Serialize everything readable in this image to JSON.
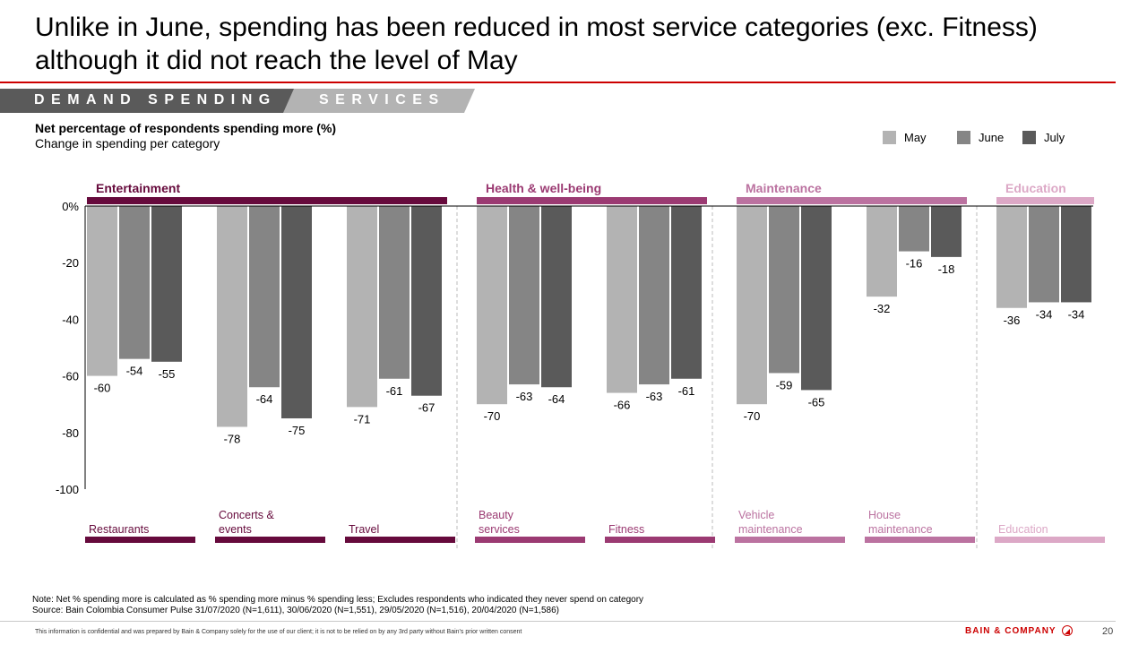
{
  "page": {
    "title": "Unlike in June, spending has been reduced in most service categories (exc. Fitness) although it did not reach the level of May",
    "section_primary": "DEMAND SPENDING",
    "section_secondary": "SERVICES",
    "subtitle_bold": "Net percentage of respondents spending more (%)",
    "subtitle": "Change in spending per category",
    "note": "Note: Net % spending more is calculated as % spending more minus % spending less; Excludes respondents who indicated they never spend on category",
    "source": "Source: Bain Colombia Consumer Pulse 31/07/2020 (N=1,611), 30/06/2020 (N=1,551), 29/05/2020 (N=1,516), 20/04/2020 (N=1,586)",
    "disclaimer": "This information is confidential and was prepared by Bain & Company solely for the use of our client; it is not to be relied on by any 3rd party without Bain's prior written consent",
    "brand": "BAIN & COMPANY",
    "page_number": "20",
    "colors": {
      "accent_red": "#cc0000",
      "may": "#b3b3b3",
      "june": "#858585",
      "july": "#5a5a5a"
    }
  },
  "chart_data": {
    "type": "bar",
    "title": "Net percentage of respondents spending more (%)",
    "subtitle": "Change in spending per category",
    "xlabel": "",
    "ylabel": "",
    "ylim": [
      -100,
      0
    ],
    "yticks": [
      0,
      -20,
      -40,
      -60,
      -80,
      -100
    ],
    "ytick_labels": [
      "0%",
      "-20",
      "-40",
      "-60",
      "-80",
      "-100"
    ],
    "legend": {
      "placement": "top-right",
      "entries": [
        "May",
        "June",
        "July"
      ]
    },
    "groups": [
      {
        "name": "Entertainment",
        "color": "#660a3c",
        "label_color": "#660a3c",
        "categories": [
          0,
          1,
          2
        ]
      },
      {
        "name": "Health & well-being",
        "color": "#9b3a72",
        "label_color": "#9b3a72",
        "categories": [
          3,
          4
        ]
      },
      {
        "name": "Maintenance",
        "color": "#bb72a0",
        "label_color": "#bb72a0",
        "categories": [
          5,
          6
        ]
      },
      {
        "name": "Education",
        "color": "#dca8c6",
        "label_color": "#dca8c6",
        "categories": [
          7
        ]
      }
    ],
    "categories": [
      "Restaurants",
      "Concerts & events",
      "Travel",
      "Beauty services",
      "Fitness",
      "Vehicle maintenance",
      "House maintenance",
      "Education"
    ],
    "category_label_lines": [
      [
        "Restaurants"
      ],
      [
        "Concerts &",
        "events"
      ],
      [
        "Travel"
      ],
      [
        "Beauty",
        "services"
      ],
      [
        "Fitness"
      ],
      [
        "Vehicle",
        "maintenance"
      ],
      [
        "House",
        "maintenance"
      ],
      [
        "Education"
      ]
    ],
    "category_group": [
      0,
      0,
      0,
      1,
      1,
      2,
      2,
      3
    ],
    "series": [
      {
        "name": "May",
        "color": "#b3b3b3",
        "values": [
          -60,
          -78,
          -71,
          -70,
          -66,
          -70,
          -32,
          -36
        ]
      },
      {
        "name": "June",
        "color": "#858585",
        "values": [
          -54,
          -64,
          -61,
          -63,
          -63,
          -59,
          -16,
          -34
        ]
      },
      {
        "name": "July",
        "color": "#5a5a5a",
        "values": [
          -55,
          -75,
          -67,
          -64,
          -61,
          -65,
          -18,
          -34
        ]
      }
    ]
  }
}
